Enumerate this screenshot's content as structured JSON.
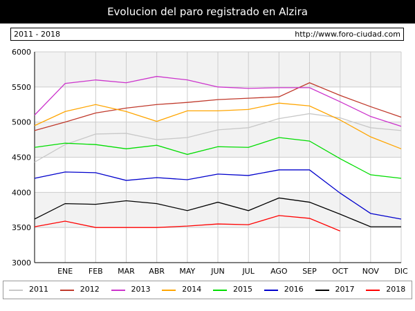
{
  "header": {
    "title": "Evolucion del paro registrado en Alzira"
  },
  "info": {
    "range": "2011 - 2018",
    "url": "http://www.foro-ciudad.com"
  },
  "colors": {
    "plot_background": "#ffffff",
    "plot_band": "#f2f2f2",
    "gridline": "#cccccc",
    "axis": "#000000"
  },
  "chart_data": {
    "type": "line",
    "title": "Evolucion del paro registrado en Alzira",
    "xlabel": "",
    "ylabel": "",
    "categories": [
      "",
      "ENE",
      "FEB",
      "MAR",
      "ABR",
      "MAY",
      "JUN",
      "JUL",
      "AGO",
      "SEP",
      "OCT",
      "NOV",
      "DIC"
    ],
    "ylim": [
      3000,
      6000
    ],
    "yticks": [
      3000,
      3500,
      4000,
      4500,
      5000,
      5500,
      6000
    ],
    "grid": true,
    "legend_position": "bottom",
    "series": [
      {
        "name": "2011",
        "color": "#c8c8c8",
        "values": [
          4430,
          4680,
          4830,
          4840,
          4750,
          4780,
          4890,
          4920,
          5050,
          5120,
          5060,
          4920,
          4880
        ]
      },
      {
        "name": "2012",
        "color": "#c0392b",
        "values": [
          4880,
          5000,
          5130,
          5200,
          5250,
          5280,
          5320,
          5340,
          5360,
          5560,
          5380,
          5220,
          5070
        ]
      },
      {
        "name": "2013",
        "color": "#cc33cc",
        "values": [
          5100,
          5550,
          5600,
          5560,
          5650,
          5600,
          5500,
          5480,
          5490,
          5490,
          5290,
          5080,
          4940
        ]
      },
      {
        "name": "2014",
        "color": "#ffa500",
        "values": [
          4950,
          5150,
          5250,
          5150,
          5010,
          5160,
          5160,
          5180,
          5270,
          5230,
          5030,
          4790,
          4620
        ]
      },
      {
        "name": "2015",
        "color": "#00dd00",
        "values": [
          4640,
          4700,
          4680,
          4620,
          4670,
          4540,
          4650,
          4640,
          4780,
          4730,
          4480,
          4250,
          4200
        ]
      },
      {
        "name": "2016",
        "color": "#0000cc",
        "values": [
          4200,
          4290,
          4280,
          4170,
          4210,
          4180,
          4260,
          4240,
          4320,
          4320,
          3990,
          3700,
          3620
        ]
      },
      {
        "name": "2017",
        "color": "#000000",
        "values": [
          3620,
          3840,
          3830,
          3880,
          3840,
          3740,
          3860,
          3740,
          3920,
          3860,
          3690,
          3510,
          3510
        ]
      },
      {
        "name": "2018",
        "color": "#ff0000",
        "values": [
          3510,
          3590,
          3500,
          3500,
          3500,
          3520,
          3550,
          3540,
          3670,
          3630,
          3450,
          null,
          null
        ]
      }
    ]
  }
}
